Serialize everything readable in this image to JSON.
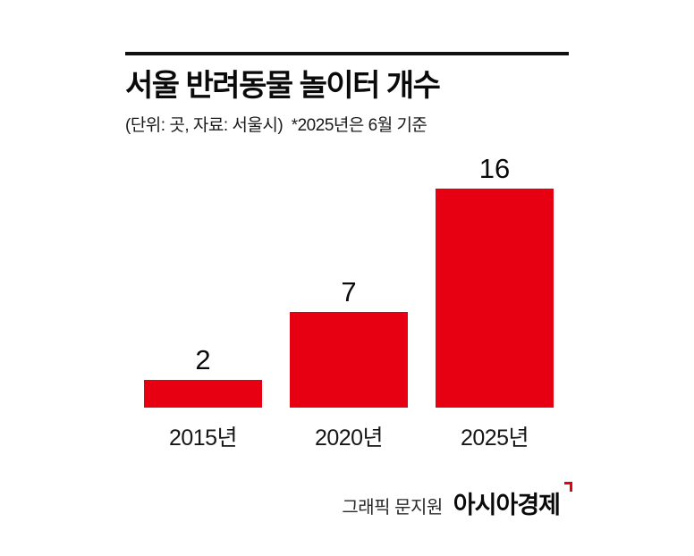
{
  "header": {
    "title": "서울 반려동물 놀이터 개수",
    "subtitle": "(단위: 곳, 자료: 서울시)  *2025년은 6월 기준"
  },
  "chart_data": {
    "type": "bar",
    "title": "서울 반려동물 놀이터 개수",
    "categories": [
      "2015년",
      "2020년",
      "2025년"
    ],
    "values": [
      2,
      7,
      16
    ],
    "xlabel": "",
    "ylabel": "",
    "ylim": [
      0,
      16
    ],
    "grid": false,
    "legend": "none",
    "bar_color": "#e60012",
    "value_labels": [
      "2",
      "7",
      "16"
    ]
  },
  "footer": {
    "credit": "그래픽 문지원",
    "brand": "아시아경제"
  },
  "colors": {
    "bar": "#e60012",
    "rule": "#111111",
    "background": "#ffffff"
  }
}
